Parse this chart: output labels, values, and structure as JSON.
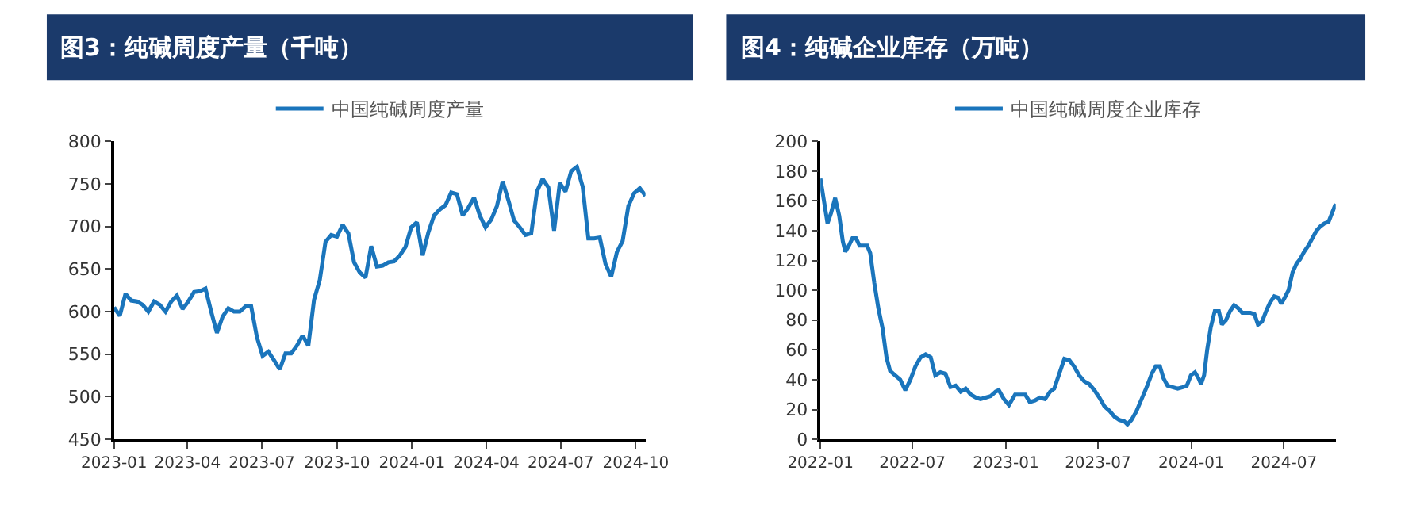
{
  "chart_data": [
    {
      "type": "line",
      "title": "图3：纯碱周度产量（千吨）",
      "legend": "top",
      "marker": "none",
      "line_style": "solid",
      "xlim": [
        "2023-01-01",
        "2024-10-13"
      ],
      "xticks": [
        {
          "value": "2023-01-01",
          "label": "2023-01"
        },
        {
          "value": "2023-04-01",
          "label": "2023-04"
        },
        {
          "value": "2023-07-01",
          "label": "2023-07"
        },
        {
          "value": "2023-10-01",
          "label": "2023-10"
        },
        {
          "value": "2024-01-01",
          "label": "2024-01"
        },
        {
          "value": "2024-04-01",
          "label": "2024-04"
        },
        {
          "value": "2024-07-01",
          "label": "2024-07"
        },
        {
          "value": "2024-10-01",
          "label": "2024-10"
        }
      ],
      "ylim": [
        450,
        800
      ],
      "yticks": [
        450,
        500,
        550,
        600,
        650,
        700,
        750,
        800
      ],
      "x": [
        "2023-01-01",
        "2023-01-08",
        "2023-01-15",
        "2023-01-22",
        "2023-01-29",
        "2023-02-05",
        "2023-02-12",
        "2023-02-19",
        "2023-02-26",
        "2023-03-05",
        "2023-03-12",
        "2023-03-19",
        "2023-03-26",
        "2023-04-02",
        "2023-04-09",
        "2023-04-16",
        "2023-04-23",
        "2023-04-30",
        "2023-05-07",
        "2023-05-14",
        "2023-05-21",
        "2023-05-28",
        "2023-06-04",
        "2023-06-11",
        "2023-06-18",
        "2023-06-25",
        "2023-07-02",
        "2023-07-09",
        "2023-07-16",
        "2023-07-23",
        "2023-07-30",
        "2023-08-06",
        "2023-08-13",
        "2023-08-20",
        "2023-08-27",
        "2023-09-03",
        "2023-09-10",
        "2023-09-17",
        "2023-09-24",
        "2023-10-01",
        "2023-10-08",
        "2023-10-15",
        "2023-10-22",
        "2023-10-29",
        "2023-11-05",
        "2023-11-12",
        "2023-11-19",
        "2023-11-26",
        "2023-12-03",
        "2023-12-10",
        "2023-12-17",
        "2023-12-24",
        "2023-12-31",
        "2024-01-07",
        "2024-01-14",
        "2024-01-21",
        "2024-01-28",
        "2024-02-04",
        "2024-02-11",
        "2024-02-18",
        "2024-02-25",
        "2024-03-03",
        "2024-03-10",
        "2024-03-17",
        "2024-03-24",
        "2024-03-31",
        "2024-04-07",
        "2024-04-14",
        "2024-04-21",
        "2024-04-28",
        "2024-05-05",
        "2024-05-12",
        "2024-05-19",
        "2024-05-26",
        "2024-06-02",
        "2024-06-09",
        "2024-06-16",
        "2024-06-23",
        "2024-06-30",
        "2024-07-07",
        "2024-07-14",
        "2024-07-21",
        "2024-07-28",
        "2024-08-04",
        "2024-08-11",
        "2024-08-18",
        "2024-08-25",
        "2024-09-01",
        "2024-09-08",
        "2024-09-15",
        "2024-09-22",
        "2024-09-29",
        "2024-10-06",
        "2024-10-13"
      ],
      "series": [
        {
          "name": "中国纯碱周度产量",
          "color": "#1a75bc",
          "values": [
            605,
            595,
            621,
            613,
            612,
            608,
            600,
            612,
            608,
            600,
            612,
            619,
            603,
            612,
            623,
            624,
            627,
            600,
            575,
            594,
            604,
            600,
            600,
            606,
            606,
            570,
            548,
            553,
            543,
            532,
            551,
            551,
            560,
            572,
            560,
            614,
            637,
            682,
            690,
            688,
            702,
            692,
            658,
            646,
            640,
            677,
            653,
            654,
            658,
            659,
            666,
            676,
            699,
            705,
            666,
            693,
            713,
            720,
            725,
            740,
            738,
            713,
            722,
            734,
            713,
            699,
            708,
            724,
            753,
            731,
            707,
            699,
            690,
            692,
            741,
            756,
            746,
            695,
            751,
            741,
            765,
            770,
            747,
            686,
            686,
            687,
            656,
            641,
            670,
            683,
            724,
            739,
            745,
            736
          ]
        }
      ]
    },
    {
      "type": "line",
      "title": "图4：纯碱企业库存（万吨）",
      "legend": "top",
      "marker": "none",
      "line_style": "solid",
      "xlim": [
        "2022-01-01",
        "2024-10-11"
      ],
      "xticks": [
        {
          "value": "2022-01-01",
          "label": "2022-01"
        },
        {
          "value": "2022-07-01",
          "label": "2022-07"
        },
        {
          "value": "2023-01-01",
          "label": "2023-01"
        },
        {
          "value": "2023-07-01",
          "label": "2023-07"
        },
        {
          "value": "2024-01-01",
          "label": "2024-01"
        },
        {
          "value": "2024-07-01",
          "label": "2024-07"
        }
      ],
      "ylim": [
        0,
        200
      ],
      "yticks": [
        0,
        20,
        40,
        60,
        80,
        100,
        120,
        140,
        160,
        180,
        200
      ],
      "x": [
        "2022-01-01",
        "2022-01-08",
        "2022-01-15",
        "2022-01-22",
        "2022-01-30",
        "2022-02-07",
        "2022-02-14",
        "2022-02-19",
        "2022-02-26",
        "2022-03-05",
        "2022-03-12",
        "2022-03-19",
        "2022-03-27",
        "2022-04-03",
        "2022-04-09",
        "2022-04-17",
        "2022-04-25",
        "2022-05-03",
        "2022-05-11",
        "2022-05-18",
        "2022-05-28",
        "2022-06-07",
        "2022-06-17",
        "2022-06-27",
        "2022-07-07",
        "2022-07-17",
        "2022-07-27",
        "2022-08-06",
        "2022-08-15",
        "2022-08-25",
        "2022-09-04",
        "2022-09-14",
        "2022-09-24",
        "2022-10-04",
        "2022-10-14",
        "2022-10-24",
        "2022-11-03",
        "2022-11-12",
        "2022-11-22",
        "2022-12-02",
        "2022-12-12",
        "2022-12-18",
        "2022-12-28",
        "2023-01-07",
        "2023-01-19",
        "2023-01-29",
        "2023-02-08",
        "2023-02-17",
        "2023-02-27",
        "2023-03-09",
        "2023-03-19",
        "2023-03-29",
        "2023-04-06",
        "2023-04-16",
        "2023-04-26",
        "2023-05-06",
        "2023-05-15",
        "2023-05-25",
        "2023-06-04",
        "2023-06-14",
        "2023-06-24",
        "2023-07-04",
        "2023-07-14",
        "2023-07-24",
        "2023-08-03",
        "2023-08-12",
        "2023-08-22",
        "2023-08-28",
        "2023-09-05",
        "2023-09-15",
        "2023-09-25",
        "2023-10-05",
        "2023-10-15",
        "2023-10-23",
        "2023-10-31",
        "2023-11-07",
        "2023-11-15",
        "2023-11-25",
        "2023-12-05",
        "2023-12-15",
        "2023-12-23",
        "2023-12-31",
        "2024-01-08",
        "2024-01-15",
        "2024-01-20",
        "2024-01-26",
        "2024-02-01",
        "2024-02-08",
        "2024-02-16",
        "2024-02-24",
        "2024-03-01",
        "2024-03-09",
        "2024-03-17",
        "2024-03-25",
        "2024-04-02",
        "2024-04-10",
        "2024-04-18",
        "2024-04-26",
        "2024-05-04",
        "2024-05-11",
        "2024-05-19",
        "2024-05-27",
        "2024-06-04",
        "2024-06-12",
        "2024-06-20",
        "2024-06-26",
        "2024-07-04",
        "2024-07-10",
        "2024-07-18",
        "2024-07-26",
        "2024-08-02",
        "2024-08-10",
        "2024-08-18",
        "2024-08-26",
        "2024-09-03",
        "2024-09-11",
        "2024-09-19",
        "2024-09-27",
        "2024-10-05",
        "2024-10-11"
      ],
      "series": [
        {
          "name": "中国纯碱周度企业库存",
          "color": "#1a75bc",
          "values": [
            175,
            160,
            145,
            152,
            162,
            150,
            133,
            126,
            130,
            135,
            135,
            130,
            130,
            130,
            125,
            105,
            88,
            75,
            55,
            46,
            43,
            40,
            33,
            40,
            49,
            55,
            57,
            55,
            43,
            45,
            44,
            35,
            36,
            32,
            34,
            30,
            28,
            27,
            28,
            29,
            32,
            33,
            27,
            23,
            30,
            30,
            30,
            25,
            26,
            28,
            27,
            32,
            34,
            44,
            54,
            53,
            49,
            43,
            39,
            37,
            33,
            28,
            22,
            19,
            15,
            13,
            12,
            10,
            13,
            19,
            27,
            35,
            44,
            49,
            49,
            41,
            36,
            35,
            34,
            35,
            36,
            43,
            45,
            41,
            37,
            43,
            60,
            75,
            86,
            86,
            77,
            80,
            86,
            90,
            88,
            85,
            85,
            85,
            84,
            77,
            79,
            86,
            92,
            96,
            95,
            91,
            96,
            100,
            112,
            118,
            121,
            126,
            130,
            135,
            140,
            143,
            145,
            146,
            153,
            158
          ]
        }
      ]
    }
  ]
}
